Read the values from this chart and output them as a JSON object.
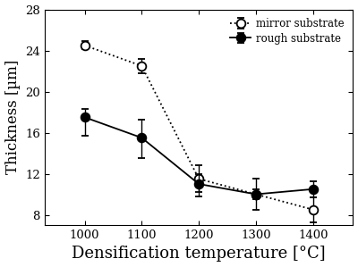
{
  "x": [
    1000,
    1100,
    1200,
    1300,
    1400
  ],
  "mirror_y": [
    24.5,
    22.5,
    11.5,
    10.0,
    8.5
  ],
  "mirror_yerr_hi": [
    0.4,
    0.7,
    1.3,
    1.5,
    1.2
  ],
  "mirror_yerr_lo": [
    0.4,
    0.7,
    1.3,
    1.5,
    1.2
  ],
  "rough_y": [
    17.5,
    15.5,
    11.0,
    10.0,
    10.5
  ],
  "rough_yerr_hi": [
    0.8,
    1.8,
    1.0,
    0.5,
    0.8
  ],
  "rough_yerr_lo": [
    1.8,
    2.0,
    1.2,
    0.5,
    0.8
  ],
  "xlabel": "Densification temperature [°C]",
  "ylabel": "Thickness [µm]",
  "ylim": [
    7,
    28
  ],
  "yticks": [
    8,
    12,
    16,
    20,
    24,
    28
  ],
  "xlim": [
    930,
    1470
  ],
  "xticks": [
    1000,
    1100,
    1200,
    1300,
    1400
  ],
  "legend_mirror": "mirror substrate",
  "legend_rough": "rough substrate",
  "line_color": "#000000",
  "marker_size": 7,
  "capsize": 3,
  "linewidth": 1.3,
  "elinewidth": 1.0
}
